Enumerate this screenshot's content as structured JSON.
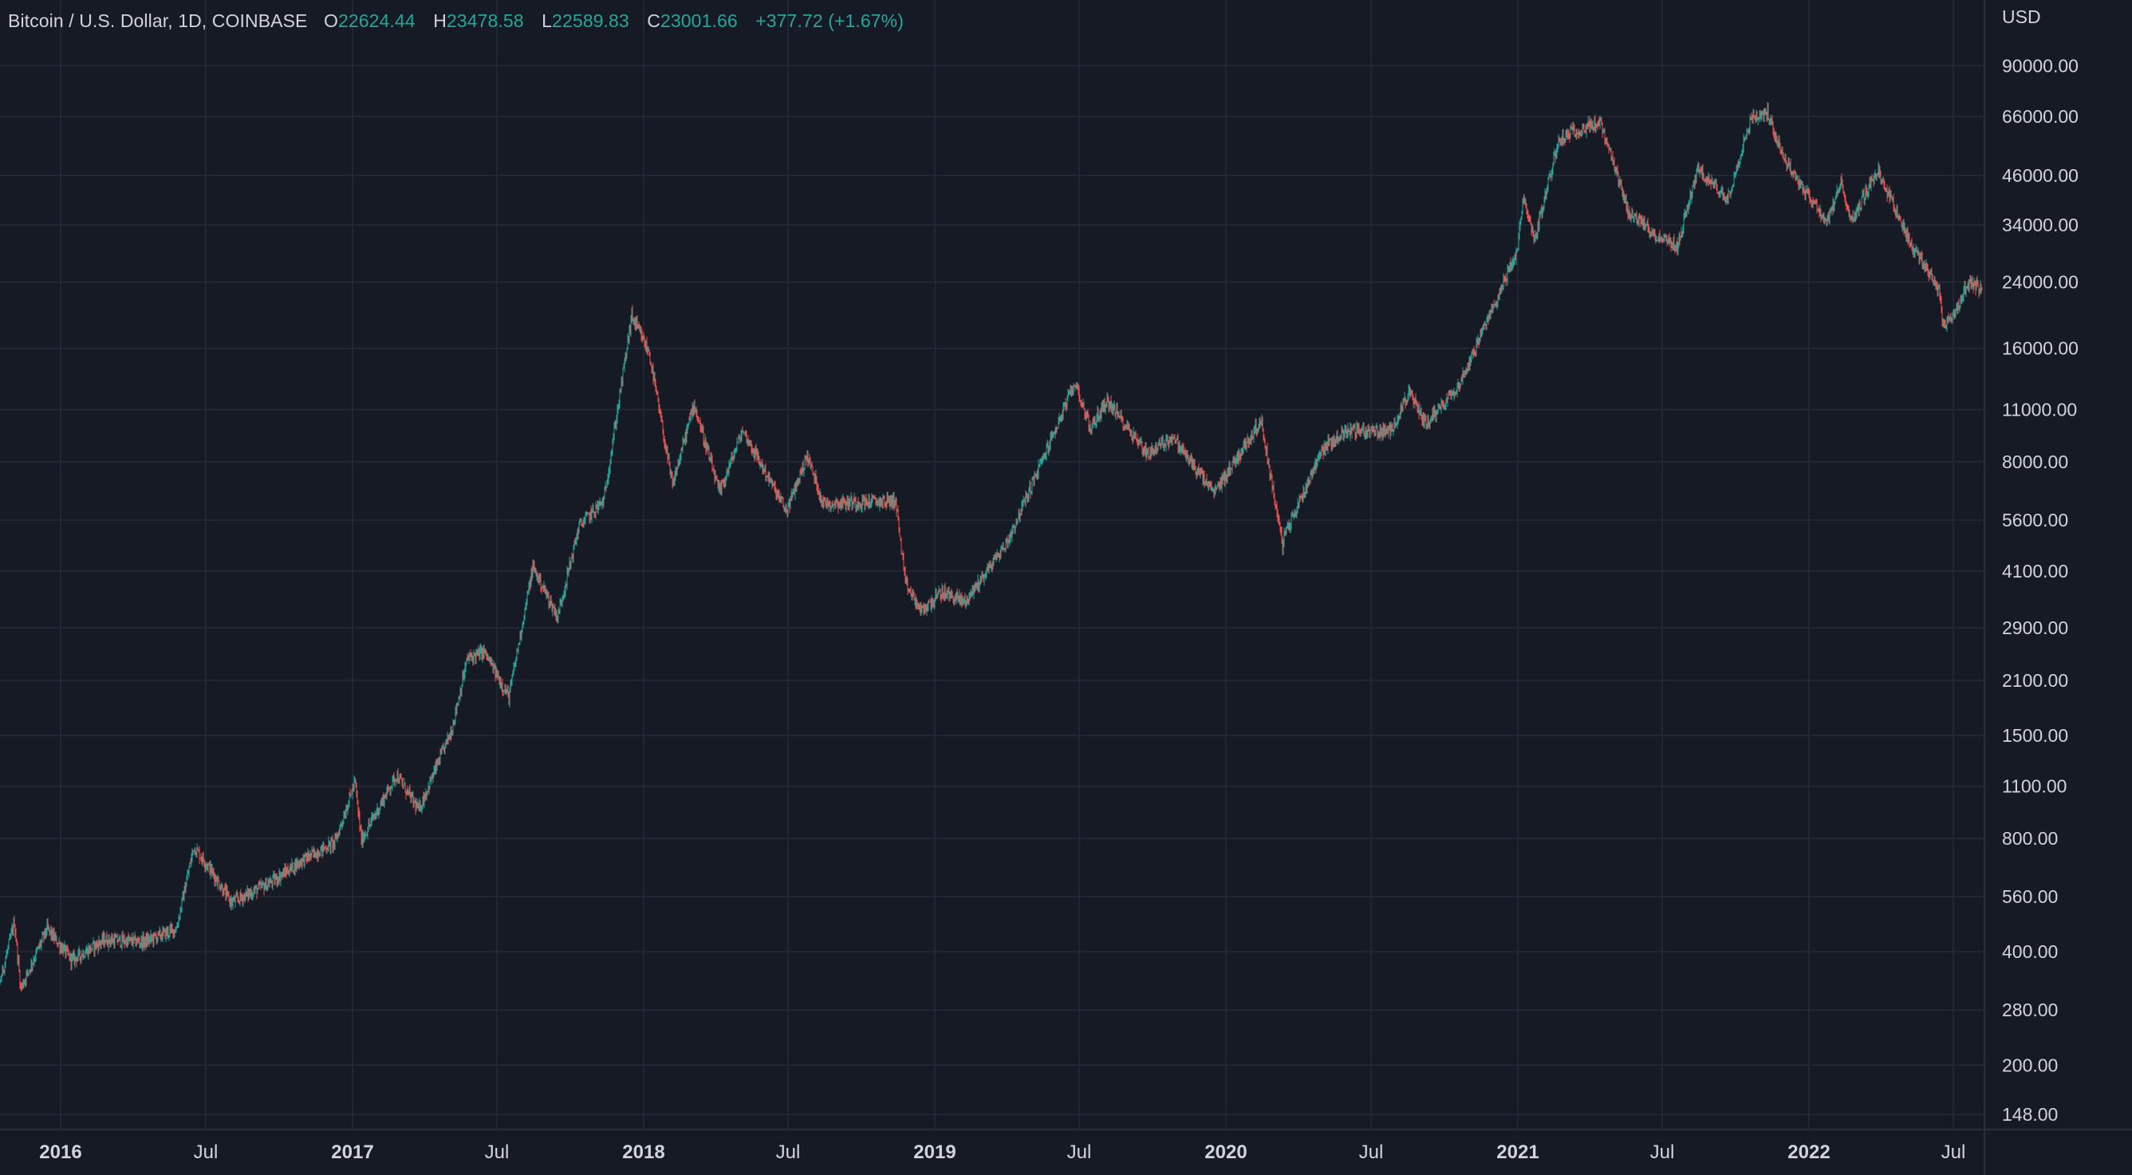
{
  "legend": {
    "symbol": "Bitcoin / U.S. Dollar, 1D, COINBASE",
    "open_label": "O",
    "open": "22624.44",
    "high_label": "H",
    "high": "23478.58",
    "low_label": "L",
    "low": "22589.83",
    "close_label": "C",
    "close": "23001.66",
    "change": "+377.72 (+1.67%)"
  },
  "colors": {
    "background": "#161a25",
    "grid": "#252a36",
    "up": "#26a69a",
    "down": "#ef5350",
    "text": "#d1d4dc"
  },
  "chart_data": {
    "type": "candlestick",
    "title": "Bitcoin / U.S. Dollar, 1D, COINBASE",
    "currency": "USD",
    "y_scale": "log",
    "grid": true,
    "y_ticks": [
      "90000.00",
      "66000.00",
      "46000.00",
      "34000.00",
      "24000.00",
      "16000.00",
      "11000.00",
      "8000.00",
      "5600.00",
      "4100.00",
      "2900.00",
      "2100.00",
      "1500.00",
      "1100.00",
      "800.00",
      "560.00",
      "400.00",
      "280.00",
      "200.00",
      "148.00"
    ],
    "x_ticks": [
      {
        "label": "2016",
        "date": "2016-01-01",
        "bold": true
      },
      {
        "label": "Jul",
        "date": "2016-07-01",
        "bold": false
      },
      {
        "label": "2017",
        "date": "2017-01-01",
        "bold": true
      },
      {
        "label": "Jul",
        "date": "2017-07-01",
        "bold": false
      },
      {
        "label": "2018",
        "date": "2018-01-01",
        "bold": true
      },
      {
        "label": "Jul",
        "date": "2018-07-01",
        "bold": false
      },
      {
        "label": "2019",
        "date": "2019-01-01",
        "bold": true
      },
      {
        "label": "Jul",
        "date": "2019-07-01",
        "bold": false
      },
      {
        "label": "2020",
        "date": "2020-01-01",
        "bold": true
      },
      {
        "label": "Jul",
        "date": "2020-07-01",
        "bold": false
      },
      {
        "label": "2021",
        "date": "2021-01-01",
        "bold": true
      },
      {
        "label": "Jul",
        "date": "2021-07-01",
        "bold": false
      },
      {
        "label": "2022",
        "date": "2022-01-01",
        "bold": true
      },
      {
        "label": "Jul",
        "date": "2022-07-01",
        "bold": false
      }
    ],
    "x_range": [
      "2015-10-01",
      "2022-08-10"
    ],
    "price_path": [
      [
        "2015-10-01",
        240
      ],
      [
        "2015-11-04",
        480
      ],
      [
        "2015-11-12",
        320
      ],
      [
        "2015-12-15",
        460
      ],
      [
        "2016-01-15",
        380
      ],
      [
        "2016-02-25",
        430
      ],
      [
        "2016-04-15",
        425
      ],
      [
        "2016-05-25",
        460
      ],
      [
        "2016-06-16",
        760
      ],
      [
        "2016-07-05",
        670
      ],
      [
        "2016-08-02",
        540
      ],
      [
        "2016-09-20",
        610
      ],
      [
        "2016-10-30",
        700
      ],
      [
        "2016-12-10",
        780
      ],
      [
        "2017-01-04",
        1130
      ],
      [
        "2017-01-12",
        790
      ],
      [
        "2017-02-25",
        1180
      ],
      [
        "2017-03-25",
        950
      ],
      [
        "2017-05-05",
        1550
      ],
      [
        "2017-05-25",
        2400
      ],
      [
        "2017-06-15",
        2500
      ],
      [
        "2017-07-16",
        1900
      ],
      [
        "2017-08-15",
        4200
      ],
      [
        "2017-09-15",
        3100
      ],
      [
        "2017-10-12",
        5400
      ],
      [
        "2017-11-12",
        6300
      ],
      [
        "2017-12-17",
        19500
      ],
      [
        "2018-01-08",
        15500
      ],
      [
        "2018-02-06",
        6900
      ],
      [
        "2018-03-05",
        11400
      ],
      [
        "2018-04-06",
        6600
      ],
      [
        "2018-05-05",
        9700
      ],
      [
        "2018-06-29",
        5900
      ],
      [
        "2018-07-25",
        8300
      ],
      [
        "2018-08-14",
        6200
      ],
      [
        "2018-11-13",
        6300
      ],
      [
        "2018-11-25",
        3800
      ],
      [
        "2018-12-15",
        3200
      ],
      [
        "2019-01-10",
        3600
      ],
      [
        "2019-02-08",
        3400
      ],
      [
        "2019-04-02",
        4900
      ],
      [
        "2019-05-15",
        8000
      ],
      [
        "2019-06-26",
        13000
      ],
      [
        "2019-07-15",
        9800
      ],
      [
        "2019-08-05",
        11600
      ],
      [
        "2019-09-25",
        8400
      ],
      [
        "2019-10-26",
        9300
      ],
      [
        "2019-12-17",
        6600
      ],
      [
        "2020-02-14",
        10300
      ],
      [
        "2020-03-12",
        4800
      ],
      [
        "2020-03-13",
        5000
      ],
      [
        "2020-04-30",
        8600
      ],
      [
        "2020-06-01",
        9700
      ],
      [
        "2020-07-25",
        9600
      ],
      [
        "2020-08-17",
        12200
      ],
      [
        "2020-09-08",
        10100
      ],
      [
        "2020-10-21",
        13000
      ],
      [
        "2020-11-25",
        19200
      ],
      [
        "2020-12-31",
        29000
      ],
      [
        "2021-01-08",
        40000
      ],
      [
        "2021-01-22",
        31000
      ],
      [
        "2021-02-21",
        57000
      ],
      [
        "2021-03-13",
        60500
      ],
      [
        "2021-04-14",
        63500
      ],
      [
        "2021-05-19",
        37000
      ],
      [
        "2021-06-22",
        32000
      ],
      [
        "2021-07-20",
        29800
      ],
      [
        "2021-08-14",
        47500
      ],
      [
        "2021-09-21",
        40000
      ],
      [
        "2021-10-20",
        65000
      ],
      [
        "2021-11-10",
        67500
      ],
      [
        "2021-12-04",
        49500
      ],
      [
        "2022-01-24",
        34500
      ],
      [
        "2022-02-10",
        44000
      ],
      [
        "2022-02-24",
        35000
      ],
      [
        "2022-03-28",
        47500
      ],
      [
        "2022-05-10",
        30000
      ],
      [
        "2022-06-13",
        23000
      ],
      [
        "2022-06-18",
        18500
      ],
      [
        "2022-07-01",
        19500
      ],
      [
        "2022-07-20",
        23800
      ],
      [
        "2022-08-06",
        23000
      ]
    ]
  }
}
